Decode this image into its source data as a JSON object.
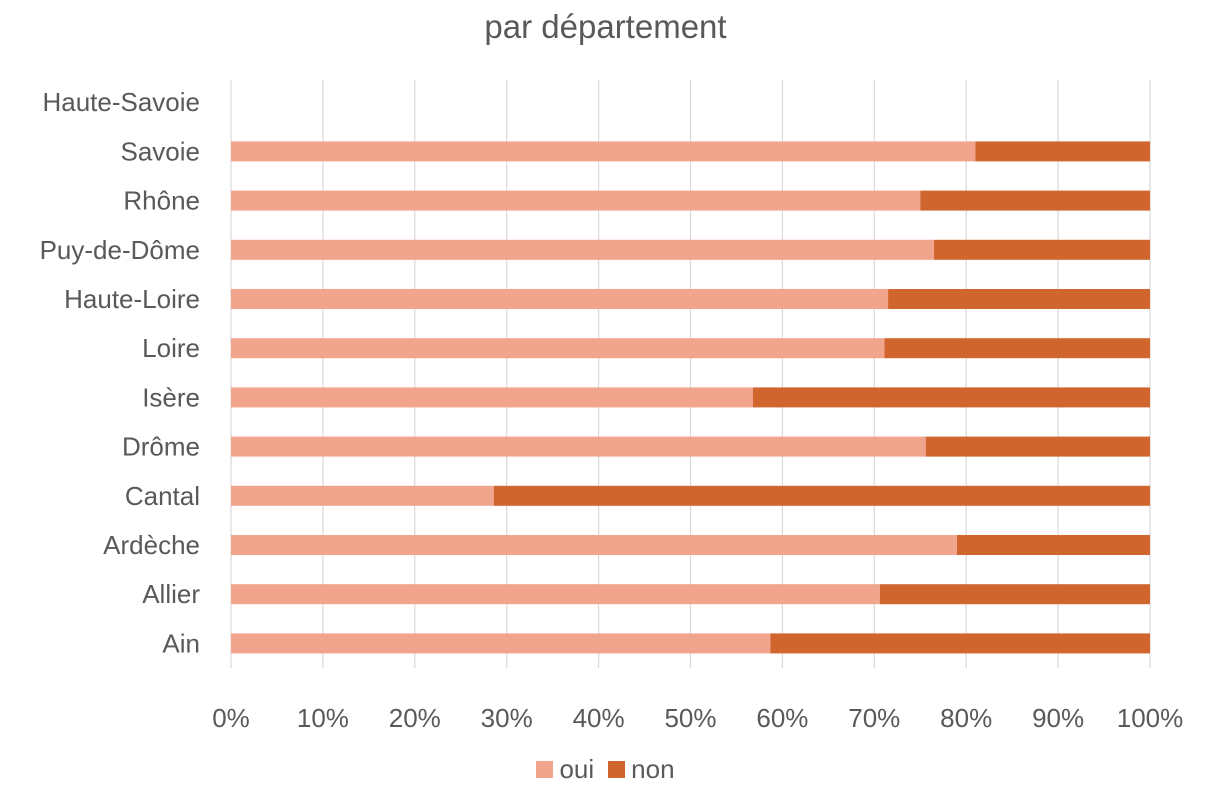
{
  "chart_data": {
    "type": "bar",
    "orientation": "horizontal",
    "stacked": "percent",
    "title": "par département",
    "categories": [
      "Ain",
      "Allier",
      "Ardèche",
      "Cantal",
      "Drôme",
      "Isère",
      "Loire",
      "Haute-Loire",
      "Puy-de-Dôme",
      "Rhône",
      "Savoie",
      "Haute-Savoie"
    ],
    "series": [
      {
        "name": "oui",
        "color": "#F0A58C",
        "values": [
          58.7,
          70.6,
          79.0,
          28.6,
          75.6,
          56.8,
          71.1,
          71.5,
          76.5,
          75.0,
          81.0,
          0
        ]
      },
      {
        "name": "non",
        "color": "#D0652E",
        "values": [
          41.3,
          29.4,
          21.0,
          71.4,
          24.4,
          43.2,
          28.9,
          28.5,
          23.5,
          25.0,
          19.0,
          0
        ]
      }
    ],
    "xlim": [
      0,
      100
    ],
    "xticks": [
      "0%",
      "10%",
      "20%",
      "30%",
      "40%",
      "50%",
      "60%",
      "70%",
      "80%",
      "90%",
      "100%"
    ],
    "grid": "vertical",
    "legend": "bottom"
  }
}
